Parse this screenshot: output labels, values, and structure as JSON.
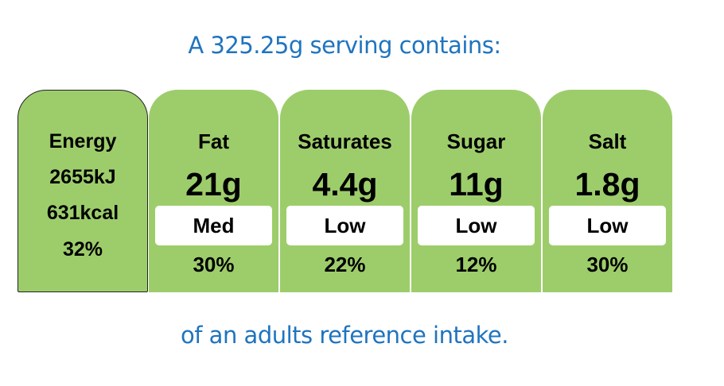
{
  "header": {
    "title": "A 325.25g serving contains:"
  },
  "energy": {
    "label": "Energy",
    "kj": "2655kJ",
    "kcal": "631kcal",
    "percent": "32%"
  },
  "nutrients": [
    {
      "name": "Fat",
      "amount": "21g",
      "level": "Med",
      "percent": "30%"
    },
    {
      "name": "Saturates",
      "amount": "4.4g",
      "level": "Low",
      "percent": "22%"
    },
    {
      "name": "Sugar",
      "amount": "11g",
      "level": "Low",
      "percent": "12%"
    },
    {
      "name": "Salt",
      "amount": "1.8g",
      "level": "Low",
      "percent": "30%"
    }
  ],
  "footer": {
    "text": "of an adults reference intake."
  }
}
